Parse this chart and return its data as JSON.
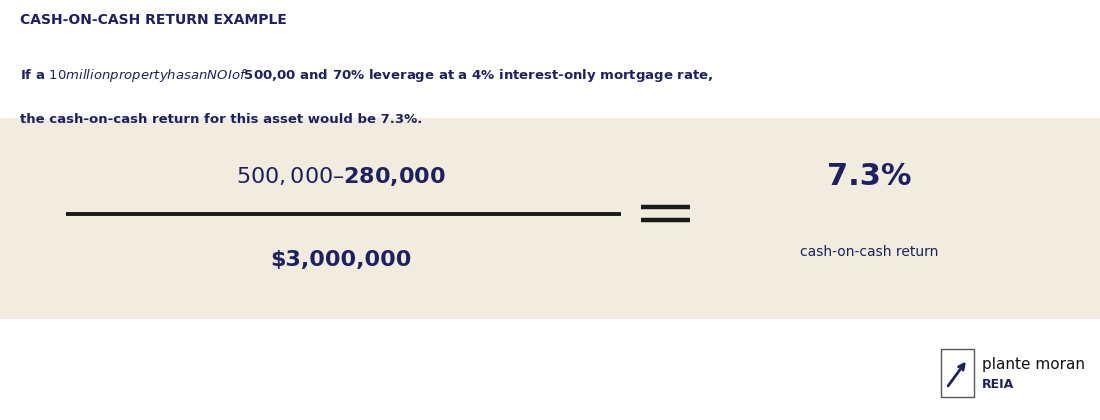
{
  "title": "CASH-ON-CASH RETURN EXAMPLE",
  "subtitle_line1": "If a $10 million property has an NOI of $500,00 and 70% leverage at a 4% interest-only mortgage rate,",
  "subtitle_line2": "the cash-on-cash return for this asset would be 7.3%.",
  "numerator": "$500,000 – $280,000",
  "denominator": "$3,000,000",
  "result_value": "7.3%",
  "result_label": "cash-on-cash return",
  "logo_text": "plante moran",
  "logo_sub": "REIA",
  "bg_white": "#ffffff",
  "bg_cream": "#f2ece0",
  "title_color": "#1e2060",
  "body_color": "#1e2060",
  "dark_color": "#1e2060",
  "line_color": "#1a1a1a"
}
